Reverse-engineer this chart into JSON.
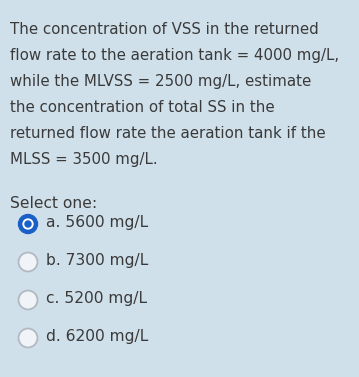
{
  "background_color": "#cfe0eb",
  "question_text_lines": [
    "The concentration of VSS in the returned",
    "flow rate to the aeration tank = 4000 mg/L,",
    "while the MLVSS = 2500 mg/L, estimate",
    "the concentration of total SS in the",
    "returned flow rate the aeration tank if the",
    "MLSS = 3500 mg/L."
  ],
  "select_label": "Select one:",
  "options": [
    {
      "label": "a. 5600 mg/L",
      "selected": true
    },
    {
      "label": "b. 7300 mg/L",
      "selected": false
    },
    {
      "label": "c. 5200 mg/L",
      "selected": false
    },
    {
      "label": "d. 6200 mg/L",
      "selected": false
    }
  ],
  "text_color": "#3a3a3a",
  "selected_outer_color": "#1a5fc8",
  "selected_inner_color": "#ffffff",
  "selected_center_color": "#1a5fc8",
  "unselected_fill": "#f0f4f8",
  "circle_edge_color": "#b0b8c0",
  "font_size_question": 10.8,
  "font_size_options": 11.2,
  "font_size_select": 11.2
}
